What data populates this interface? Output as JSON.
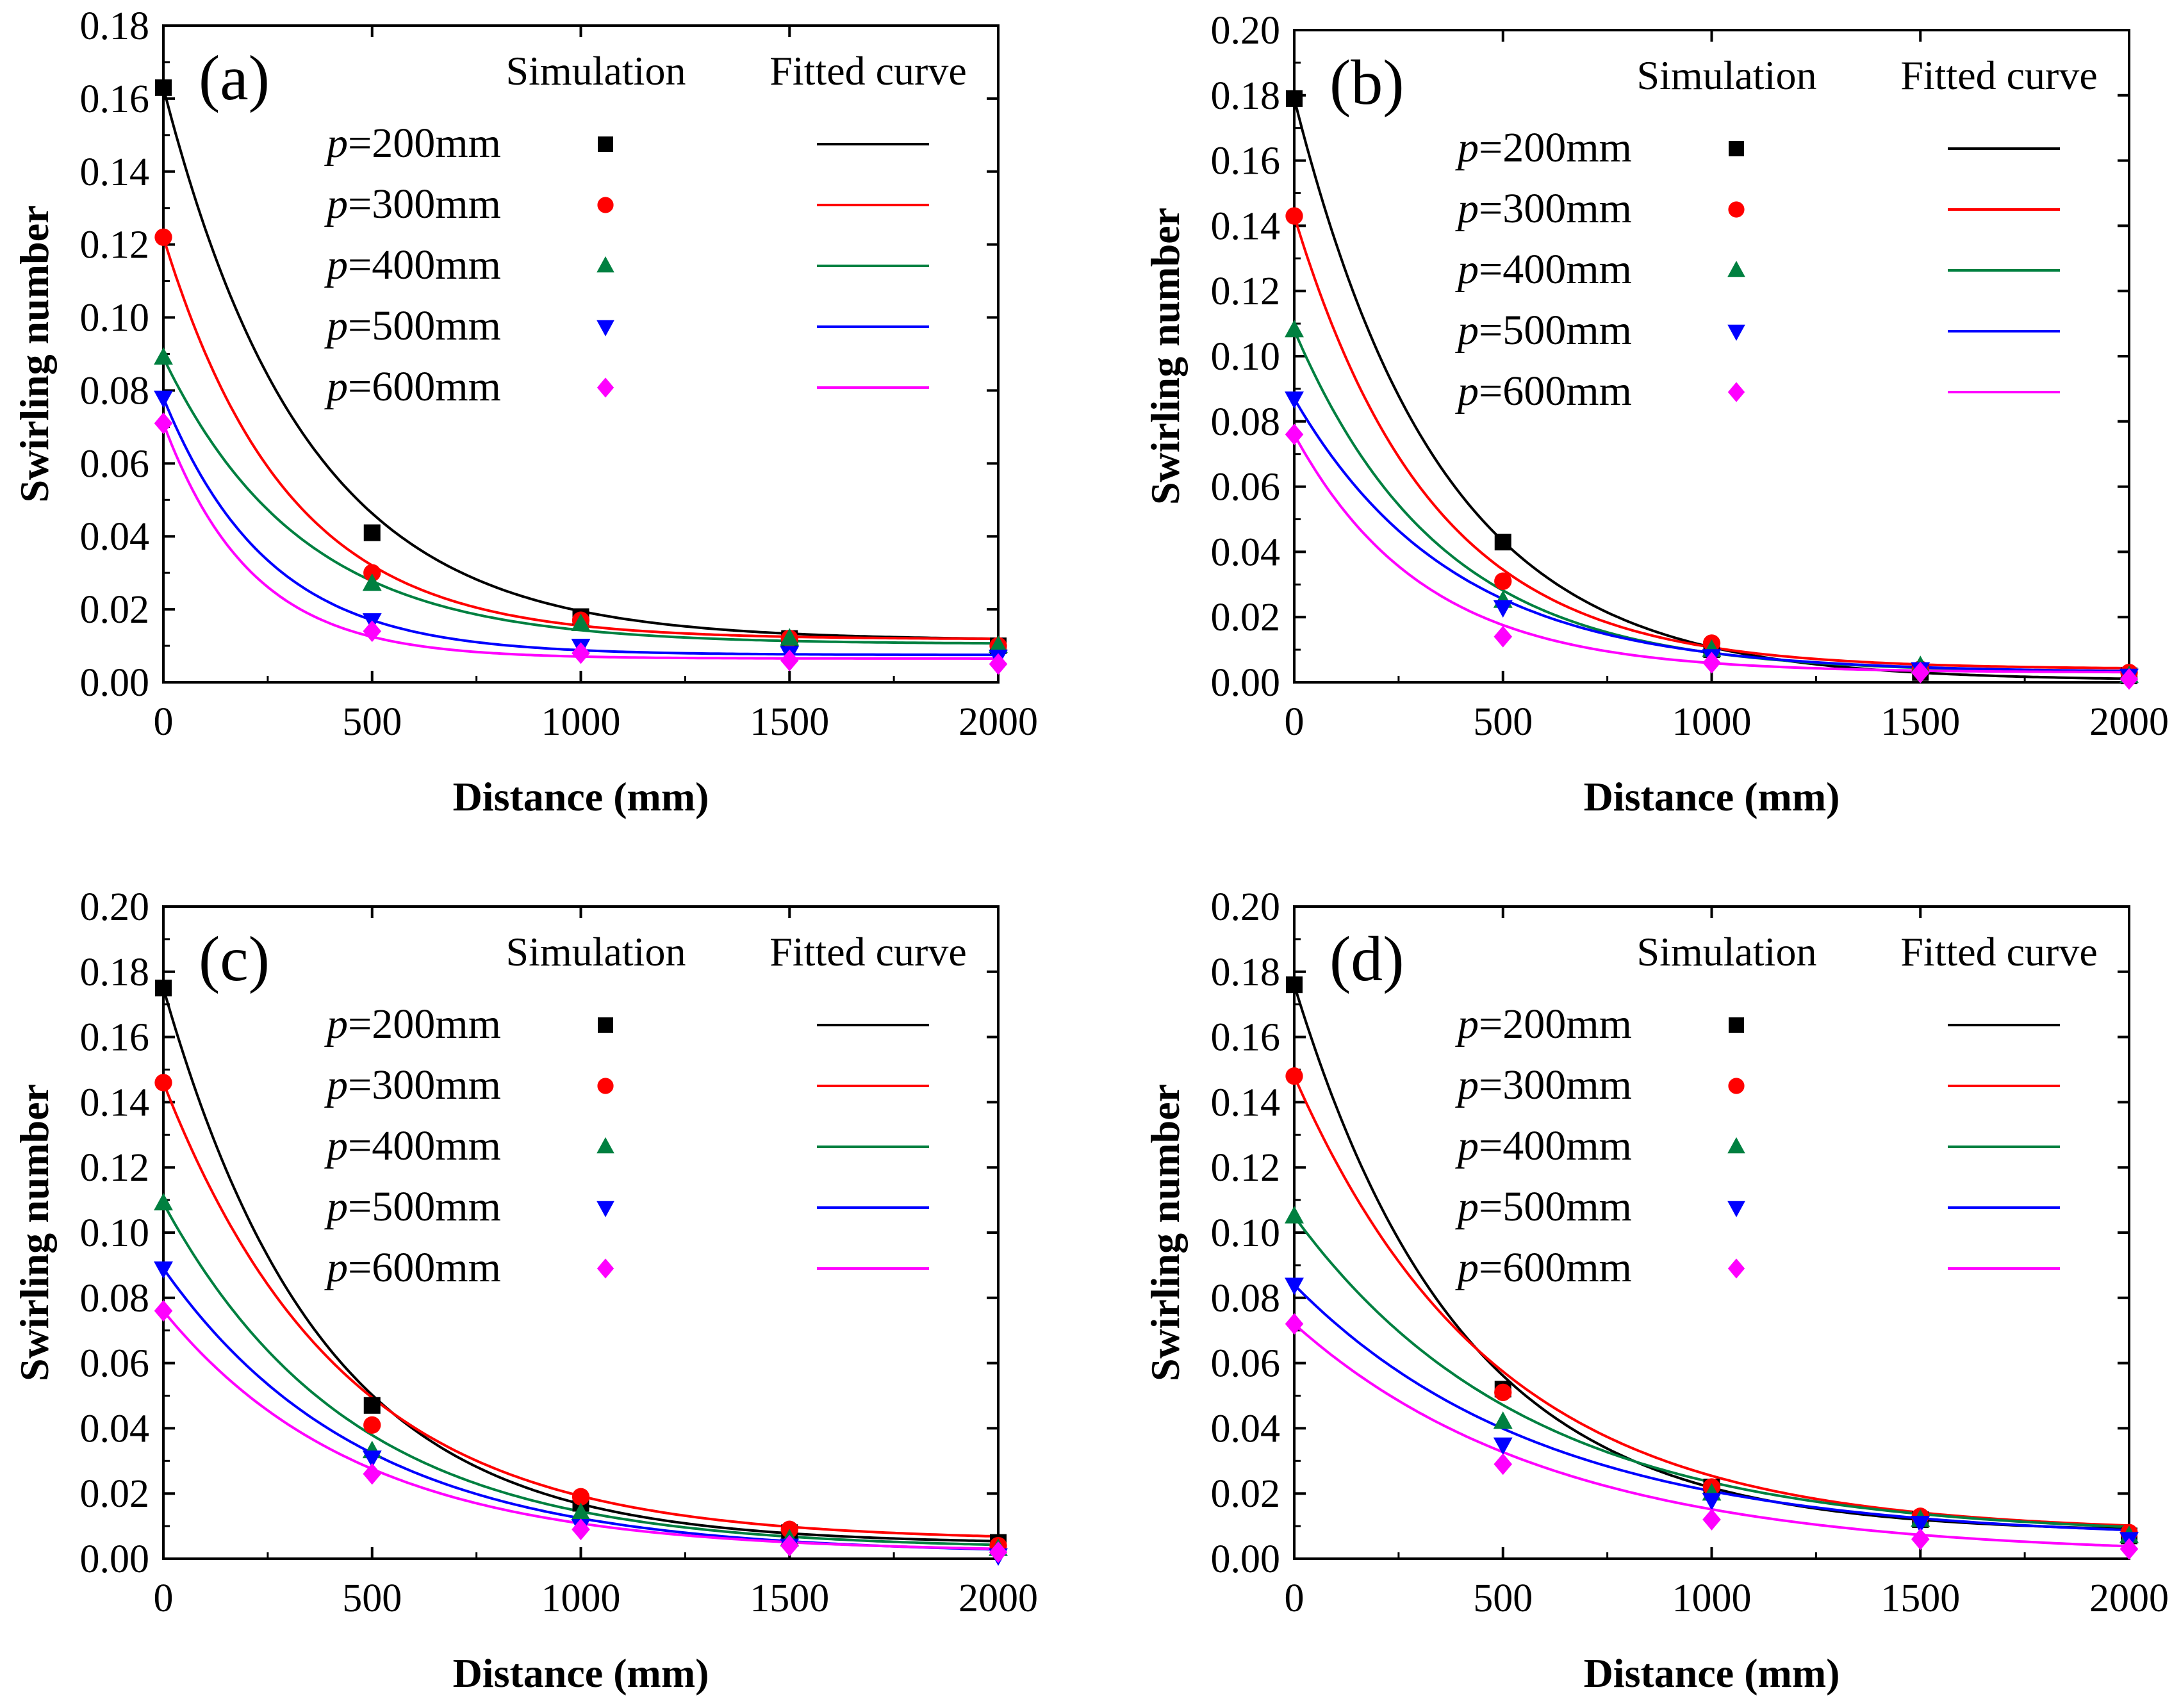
{
  "figure": {
    "legend_header_simulation": "Simulation",
    "legend_header_fitted": "Fitted curve",
    "legend_prefix": "p",
    "legend_entries": [
      "=200mm",
      "=300mm",
      "=400mm",
      "=500mm",
      "=600mm"
    ],
    "series_colors": [
      "#000000",
      "#ff0000",
      "#008040",
      "#0000ff",
      "#ff00ff"
    ],
    "series_markers": [
      "square",
      "circle",
      "triangle-up",
      "triangle-down",
      "diamond"
    ]
  },
  "chart_data": [
    {
      "type": "scatter",
      "panel_label": "(a)",
      "xlabel": "Distance (mm)",
      "ylabel": "Swirling number",
      "xlim": [
        0,
        2000
      ],
      "ylim": [
        0,
        0.18
      ],
      "x_ticks": [
        "0",
        "500",
        "1000",
        "1500",
        "2000"
      ],
      "y_ticks": [
        "0.00",
        "0.02",
        "0.04",
        "0.06",
        "0.08",
        "0.10",
        "0.12",
        "0.14",
        "0.16",
        "0.18"
      ],
      "x": [
        0,
        500,
        1000,
        1500,
        2000
      ],
      "series": [
        {
          "name": "p =200mm",
          "values": [
            0.163,
            0.041,
            0.018,
            0.012,
            0.01
          ],
          "fit": {
            "y0": 0.0115,
            "A": 0.1515,
            "t": 340
          }
        },
        {
          "name": "p =300mm",
          "values": [
            0.122,
            0.03,
            0.017,
            0.012,
            0.01
          ],
          "fit": {
            "y0": 0.0118,
            "A": 0.1102,
            "t": 295
          }
        },
        {
          "name": "p =400mm",
          "values": [
            0.089,
            0.027,
            0.016,
            0.012,
            0.01
          ],
          "fit": {
            "y0": 0.0105,
            "A": 0.0785,
            "t": 330
          }
        },
        {
          "name": "p =500mm",
          "values": [
            0.078,
            0.017,
            0.01,
            0.008,
            0.007
          ],
          "fit": {
            "y0": 0.0075,
            "A": 0.0705,
            "t": 250
          }
        },
        {
          "name": "p =600mm",
          "values": [
            0.071,
            0.014,
            0.008,
            0.006,
            0.005
          ],
          "fit": {
            "y0": 0.0065,
            "A": 0.0645,
            "t": 210
          }
        }
      ]
    },
    {
      "type": "scatter",
      "panel_label": "(b)",
      "xlabel": "Distance (mm)",
      "ylabel": "Swirling number",
      "xlim": [
        0,
        2000
      ],
      "ylim": [
        0,
        0.2
      ],
      "x_ticks": [
        "0",
        "500",
        "1000",
        "1500",
        "2000"
      ],
      "y_ticks": [
        "0.00",
        "0.02",
        "0.04",
        "0.06",
        "0.08",
        "0.10",
        "0.12",
        "0.14",
        "0.16",
        "0.18",
        "0.20"
      ],
      "x": [
        0,
        500,
        1000,
        1500,
        2000
      ],
      "series": [
        {
          "name": "p =200mm",
          "values": [
            0.179,
            0.043,
            0.01,
            0.003,
            0.002
          ],
          "fit": {
            "y0": 0.0005,
            "A": 0.1785,
            "t": 350
          }
        },
        {
          "name": "p =300mm",
          "values": [
            0.143,
            0.031,
            0.012,
            0.004,
            0.003
          ],
          "fit": {
            "y0": 0.004,
            "A": 0.139,
            "t": 330
          }
        },
        {
          "name": "p =400mm",
          "values": [
            0.108,
            0.025,
            0.01,
            0.005,
            0.002
          ],
          "fit": {
            "y0": 0.003,
            "A": 0.105,
            "t": 350
          }
        },
        {
          "name": "p =500mm",
          "values": [
            0.087,
            0.023,
            0.008,
            0.004,
            0.002
          ],
          "fit": {
            "y0": 0.003,
            "A": 0.084,
            "t": 380
          }
        },
        {
          "name": "p =600mm",
          "values": [
            0.076,
            0.014,
            0.006,
            0.003,
            0.001
          ],
          "fit": {
            "y0": 0.003,
            "A": 0.073,
            "t": 310
          }
        }
      ]
    },
    {
      "type": "scatter",
      "panel_label": "(c)",
      "xlabel": "Distance (mm)",
      "ylabel": "Swirling number",
      "xlim": [
        0,
        2000
      ],
      "ylim": [
        0,
        0.2
      ],
      "x_ticks": [
        "0",
        "500",
        "1000",
        "1500",
        "2000"
      ],
      "y_ticks": [
        "0.00",
        "0.02",
        "0.04",
        "0.06",
        "0.08",
        "0.10",
        "0.12",
        "0.14",
        "0.16",
        "0.18",
        "0.20"
      ],
      "x": [
        0,
        500,
        1000,
        1500,
        2000
      ],
      "series": [
        {
          "name": "p =200mm",
          "values": [
            0.175,
            0.047,
            0.017,
            0.008,
            0.005
          ],
          "fit": {
            "y0": 0.0045,
            "A": 0.1705,
            "t": 380
          }
        },
        {
          "name": "p =300mm",
          "values": [
            0.146,
            0.041,
            0.019,
            0.009,
            0.004
          ],
          "fit": {
            "y0": 0.0055,
            "A": 0.1405,
            "t": 430
          }
        },
        {
          "name": "p =400mm",
          "values": [
            0.109,
            0.033,
            0.014,
            0.006,
            0.003
          ],
          "fit": {
            "y0": 0.003,
            "A": 0.106,
            "t": 450
          }
        },
        {
          "name": "p =500mm",
          "values": [
            0.089,
            0.031,
            0.01,
            0.004,
            0.001
          ],
          "fit": {
            "y0": 0.0015,
            "A": 0.0875,
            "t": 480
          }
        },
        {
          "name": "p =600mm",
          "values": [
            0.076,
            0.026,
            0.009,
            0.004,
            0.002
          ],
          "fit": {
            "y0": 0.002,
            "A": 0.074,
            "t": 470
          }
        }
      ]
    },
    {
      "type": "scatter",
      "panel_label": "(d)",
      "xlabel": "Distance (mm)",
      "ylabel": "Swirling number",
      "xlim": [
        0,
        2000
      ],
      "ylim": [
        0,
        0.2
      ],
      "x_ticks": [
        "0",
        "500",
        "1000",
        "1500",
        "2000"
      ],
      "y_ticks": [
        "0.00",
        "0.02",
        "0.04",
        "0.06",
        "0.08",
        "0.10",
        "0.12",
        "0.14",
        "0.16",
        "0.18",
        "0.20"
      ],
      "x": [
        0,
        500,
        1000,
        1500,
        2000
      ],
      "series": [
        {
          "name": "p =200mm",
          "values": [
            0.176,
            0.052,
            0.022,
            0.012,
            0.007
          ],
          "fit": {
            "y0": 0.008,
            "A": 0.168,
            "t": 400
          }
        },
        {
          "name": "p =300mm",
          "values": [
            0.148,
            0.051,
            0.022,
            0.013,
            0.008
          ],
          "fit": {
            "y0": 0.008,
            "A": 0.14,
            "t": 480
          }
        },
        {
          "name": "p =400mm",
          "values": [
            0.105,
            0.042,
            0.02,
            0.012,
            0.007
          ],
          "fit": {
            "y0": 0.007,
            "A": 0.098,
            "t": 560
          }
        },
        {
          "name": "p =500mm",
          "values": [
            0.084,
            0.035,
            0.018,
            0.011,
            0.006
          ],
          "fit": {
            "y0": 0.006,
            "A": 0.078,
            "t": 600
          }
        },
        {
          "name": "p =600mm",
          "values": [
            0.072,
            0.029,
            0.012,
            0.006,
            0.003
          ],
          "fit": {
            "y0": 0.001,
            "A": 0.071,
            "t": 620
          }
        }
      ]
    }
  ]
}
